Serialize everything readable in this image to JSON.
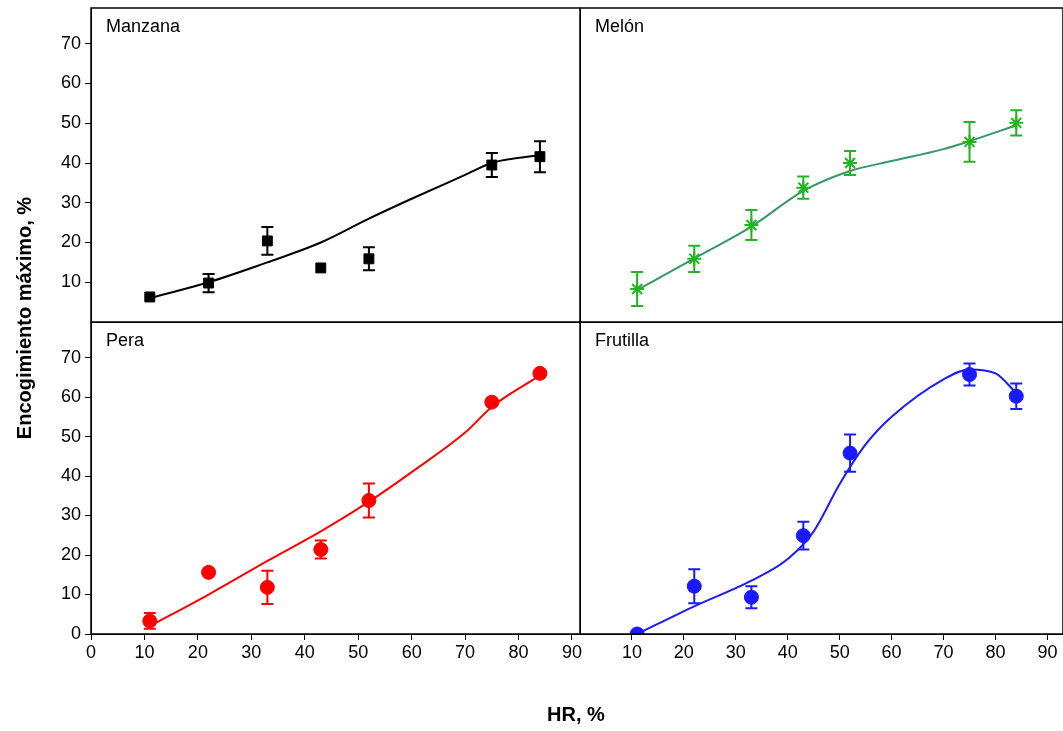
{
  "chart_data": [
    {
      "type": "scatter",
      "title": "Manzana",
      "ylabel": "Encogimiento máximo, %",
      "x": [
        11,
        22,
        33,
        43,
        52,
        75,
        84
      ],
      "xlim": [
        0,
        91.5
      ],
      "xticks": [
        0,
        10,
        20,
        30,
        40,
        50,
        60,
        70,
        80,
        90
      ],
      "ylim": [
        0,
        79
      ],
      "yticks": [
        10,
        20,
        30,
        40,
        50,
        60,
        70
      ],
      "tick_labels": "y",
      "series": [
        {
          "color": "#000000",
          "marker": "square",
          "values": [
            6.3,
            9.8,
            20.4,
            13.6,
            15.9,
            39.5,
            41.6
          ],
          "errors": [
            null,
            2.3,
            3.5,
            null,
            2.9,
            3,
            3.9
          ]
        },
        {
          "type": "line",
          "color": "#000000",
          "marker": "none",
          "line_style": "solid",
          "x": [
            11,
            22,
            33,
            43,
            52,
            60,
            70,
            75,
            84
          ],
          "values": [
            6,
            10,
            15,
            20,
            26,
            31,
            37,
            40,
            42
          ]
        }
      ]
    },
    {
      "type": "scatter",
      "title": "Melón",
      "x": [
        11,
        22,
        33,
        43,
        52,
        75,
        84
      ],
      "xlim": [
        0,
        93
      ],
      "xticks": [
        10,
        20,
        30,
        40,
        50,
        60,
        70,
        80,
        90
      ],
      "ylim": [
        0,
        79
      ],
      "yticks": [
        10,
        20,
        30,
        40,
        50,
        60,
        70
      ],
      "tick_labels": false,
      "series": [
        {
          "color": "#22b422",
          "marker": "cross",
          "values": [
            8.3,
            15.9,
            24.4,
            33.8,
            40,
            45.3,
            50.1
          ],
          "errors": [
            4.3,
            3.3,
            3.8,
            2.8,
            3,
            5,
            3.2
          ]
        },
        {
          "type": "line",
          "color": "#339966",
          "marker": "none",
          "line_style": "solid",
          "x": [
            11,
            22,
            33,
            43,
            52,
            60,
            70,
            75,
            84
          ],
          "values": [
            8,
            16,
            24,
            33,
            38,
            40.5,
            43.5,
            45.5,
            49.5
          ]
        }
      ]
    },
    {
      "type": "scatter",
      "title": "Pera",
      "xlabel": "HR, %",
      "x": [
        11,
        22,
        33,
        43,
        52,
        75,
        84
      ],
      "xlim": [
        0,
        91.5
      ],
      "xticks": [
        0,
        10,
        20,
        30,
        40,
        50,
        60,
        70,
        80,
        90
      ],
      "ylim": [
        0,
        79
      ],
      "yticks": [
        0,
        10,
        20,
        30,
        40,
        50,
        60,
        70
      ],
      "series": [
        {
          "color": "#ff0000",
          "marker": "circle",
          "values": [
            3.3,
            15.6,
            11.8,
            21.4,
            33.8,
            58.7,
            66
          ],
          "errors": [
            2,
            null,
            4.2,
            2.3,
            4.3,
            null,
            null
          ]
        },
        {
          "type": "line",
          "color": "#ff0000",
          "marker": "none",
          "line_style": "solid",
          "x": [
            11,
            22,
            33,
            43,
            52,
            60,
            70,
            75,
            84
          ],
          "values": [
            2,
            10,
            18.5,
            26,
            33.5,
            41,
            51,
            57.5,
            65.5
          ]
        }
      ]
    },
    {
      "type": "scatter",
      "title": "Frutilla",
      "x": [
        11,
        22,
        33,
        43,
        52,
        75,
        84
      ],
      "xlim": [
        0,
        93
      ],
      "xticks": [
        10,
        20,
        30,
        40,
        50,
        60,
        70,
        80,
        90
      ],
      "ylim": [
        0,
        79
      ],
      "yticks": [
        0,
        10,
        20,
        30,
        40,
        50,
        60,
        70
      ],
      "tick_labels": "x",
      "series": [
        {
          "color": "#1a1aff",
          "marker": "circle",
          "values": [
            0,
            12.1,
            9.3,
            24.9,
            45.8,
            65.7,
            60.2
          ],
          "errors": [
            null,
            4.3,
            2.8,
            3.5,
            4.7,
            2.8,
            3.2
          ]
        },
        {
          "type": "line",
          "color": "#1a1aff",
          "marker": "none",
          "line_style": "solid",
          "x": [
            11,
            22,
            33,
            40,
            45,
            50,
            55,
            60,
            70,
            75,
            80,
            84
          ],
          "values": [
            0,
            7,
            13.5,
            19,
            26,
            38,
            48,
            55,
            64.5,
            67,
            66,
            61
          ]
        }
      ]
    }
  ]
}
